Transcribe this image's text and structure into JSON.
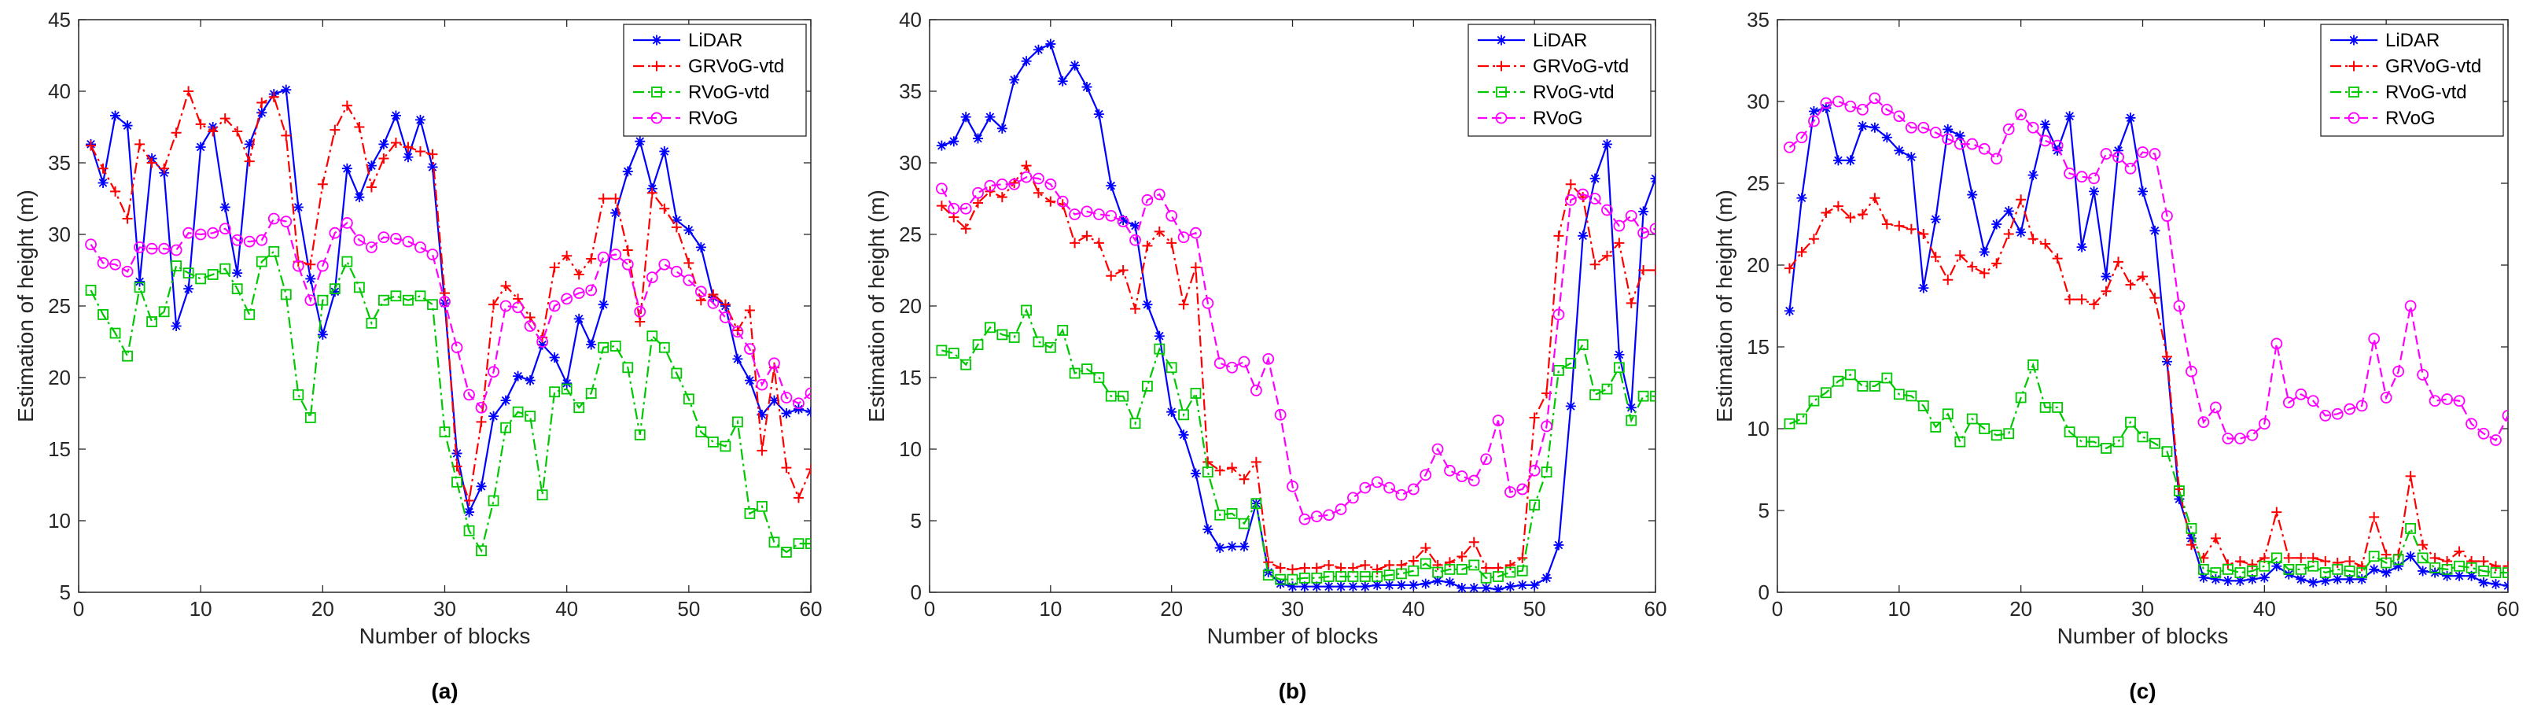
{
  "colors": {
    "lidar": "#0000FF",
    "grvog": "#FF0000",
    "rvogvtd": "#00C800",
    "rvog": "#FF00FF"
  },
  "chart_data": [
    {
      "type": "line",
      "panel_label": "(a)",
      "xlabel": "Number of blocks",
      "ylabel": "Estimation of height (m)",
      "xlim": [
        0,
        60
      ],
      "ylim": [
        5,
        45
      ],
      "xticks": [
        "0",
        "10",
        "20",
        "30",
        "40",
        "50",
        "60"
      ],
      "yticks": [
        "5",
        "10",
        "15",
        "20",
        "25",
        "30",
        "35",
        "40",
        "45"
      ],
      "legend_position": "top-right",
      "x": [
        1,
        2,
        3,
        4,
        5,
        6,
        7,
        8,
        9,
        10,
        11,
        12,
        13,
        14,
        15,
        16,
        17,
        18,
        19,
        20,
        21,
        22,
        23,
        24,
        25,
        26,
        27,
        28,
        29,
        30,
        31,
        32,
        33,
        34,
        35,
        36,
        37,
        38,
        39,
        40,
        41,
        42,
        43,
        44,
        45,
        46,
        47,
        48,
        49,
        50,
        51,
        52,
        53,
        54,
        55,
        56,
        57,
        58,
        59,
        60
      ],
      "series": [
        {
          "name": "LiDAR",
          "color_key": "lidar",
          "marker": "asterisk",
          "dash": "solid",
          "values": [
            36.3,
            33.6,
            38.3,
            37.6,
            26.7,
            35.3,
            34.3,
            23.6,
            26.2,
            36.1,
            37.5,
            31.9,
            27.3,
            36.3,
            38.5,
            39.8,
            40.1,
            31.9,
            26.9,
            23.0,
            26.0,
            34.6,
            32.6,
            34.8,
            36.3,
            38.3,
            35.4,
            38.0,
            34.7,
            25.2,
            14.7,
            10.6,
            12.4,
            17.3,
            18.4,
            20.1,
            19.8,
            22.3,
            21.4,
            19.6,
            24.1,
            22.3,
            25.1,
            31.5,
            34.4,
            36.5,
            33.2,
            35.8,
            31.0,
            30.3,
            29.1,
            25.6,
            25.0,
            21.3,
            19.8,
            17.4,
            18.4,
            17.5,
            17.8,
            17.6
          ]
        },
        {
          "name": "GRVoG-vtd",
          "color_key": "grvog",
          "marker": "plus",
          "dash": "dashdot",
          "values": [
            36.2,
            34.6,
            33.0,
            31.1,
            36.3,
            35.0,
            34.6,
            37.1,
            40.0,
            37.7,
            37.2,
            38.1,
            37.2,
            35.1,
            39.2,
            39.6,
            36.9,
            28.1,
            27.9,
            33.5,
            37.3,
            39.0,
            37.5,
            33.3,
            35.3,
            36.4,
            36.1,
            35.8,
            35.6,
            25.9,
            13.8,
            11.4,
            16.9,
            25.1,
            26.4,
            25.5,
            24.2,
            22.8,
            27.7,
            28.5,
            27.2,
            28.3,
            32.5,
            32.5,
            28.9,
            23.9,
            32.9,
            31.8,
            30.5,
            28.0,
            25.4,
            25.8,
            25.1,
            23.3,
            24.7,
            14.9,
            20.7,
            13.7,
            11.6,
            13.6
          ]
        },
        {
          "name": "RVoG-vtd",
          "color_key": "rvogvtd",
          "marker": "square",
          "dash": "dashdot",
          "values": [
            26.1,
            24.4,
            23.1,
            21.5,
            26.3,
            23.9,
            24.6,
            27.8,
            27.3,
            26.9,
            27.2,
            27.6,
            26.2,
            24.4,
            28.1,
            28.8,
            25.8,
            18.8,
            17.2,
            25.4,
            26.2,
            28.1,
            26.3,
            23.8,
            25.4,
            25.7,
            25.4,
            25.7,
            25.1,
            16.2,
            12.7,
            9.3,
            7.9,
            11.4,
            16.5,
            17.6,
            17.3,
            11.8,
            19.0,
            19.2,
            17.9,
            18.9,
            22.1,
            22.2,
            20.7,
            16.0,
            22.9,
            22.1,
            20.3,
            18.5,
            16.2,
            15.5,
            15.2,
            16.9,
            10.5,
            11.0,
            8.5,
            7.8,
            8.4,
            8.4
          ]
        },
        {
          "name": "RVoG",
          "color_key": "rvog",
          "marker": "circle",
          "dash": "dashed",
          "values": [
            29.3,
            28.0,
            27.9,
            27.4,
            29.1,
            29.0,
            29.0,
            28.9,
            30.1,
            30.0,
            30.1,
            30.4,
            29.6,
            29.5,
            29.6,
            31.1,
            30.9,
            27.8,
            25.4,
            27.8,
            30.1,
            30.8,
            29.6,
            29.1,
            29.8,
            29.7,
            29.5,
            29.1,
            28.6,
            25.3,
            22.1,
            18.8,
            17.9,
            20.4,
            25.0,
            24.9,
            23.6,
            22.5,
            25.0,
            25.5,
            25.9,
            26.1,
            28.4,
            28.6,
            27.9,
            24.6,
            27.0,
            27.9,
            27.4,
            26.8,
            26.0,
            25.2,
            24.2,
            23.2,
            22.0,
            19.5,
            21.0,
            18.6,
            18.2,
            18.9
          ]
        }
      ]
    },
    {
      "type": "line",
      "panel_label": "(b)",
      "xlabel": "Number of blocks",
      "ylabel": "Estimation of height (m)",
      "xlim": [
        0,
        60
      ],
      "ylim": [
        0,
        40
      ],
      "xticks": [
        "0",
        "10",
        "20",
        "30",
        "40",
        "50",
        "60"
      ],
      "yticks": [
        "0",
        "5",
        "10",
        "15",
        "20",
        "25",
        "30",
        "35",
        "40"
      ],
      "legend_position": "top-right",
      "x": [
        1,
        2,
        3,
        4,
        5,
        6,
        7,
        8,
        9,
        10,
        11,
        12,
        13,
        14,
        15,
        16,
        17,
        18,
        19,
        20,
        21,
        22,
        23,
        24,
        25,
        26,
        27,
        28,
        29,
        30,
        31,
        32,
        33,
        34,
        35,
        36,
        37,
        38,
        39,
        40,
        41,
        42,
        43,
        44,
        45,
        46,
        47,
        48,
        49,
        50,
        51,
        52,
        53,
        54,
        55,
        56,
        57,
        58,
        59,
        60
      ],
      "series": [
        {
          "name": "LiDAR",
          "color_key": "lidar",
          "marker": "asterisk",
          "dash": "solid",
          "values": [
            31.2,
            31.5,
            33.2,
            31.7,
            33.2,
            32.4,
            35.8,
            37.1,
            37.9,
            38.3,
            35.7,
            36.8,
            35.3,
            33.4,
            28.4,
            26.0,
            25.6,
            20.1,
            17.9,
            12.6,
            11.0,
            8.3,
            4.4,
            3.1,
            3.2,
            3.2,
            6.2,
            1.4,
            0.6,
            0.4,
            0.4,
            0.4,
            0.4,
            0.4,
            0.4,
            0.4,
            0.5,
            0.5,
            0.5,
            0.5,
            0.6,
            0.8,
            0.7,
            0.3,
            0.3,
            0.3,
            0.2,
            0.4,
            0.5,
            0.5,
            1.0,
            3.3,
            13.0,
            24.9,
            28.9,
            31.3,
            16.6,
            12.9,
            26.6,
            28.9
          ]
        },
        {
          "name": "GRVoG-vtd",
          "color_key": "grvog",
          "marker": "plus",
          "dash": "dashdot",
          "values": [
            27.0,
            26.2,
            25.4,
            27.2,
            28.0,
            27.6,
            28.6,
            29.8,
            27.9,
            27.3,
            27.1,
            24.4,
            24.9,
            24.4,
            22.1,
            22.5,
            19.8,
            24.2,
            25.2,
            24.4,
            20.1,
            22.7,
            9.1,
            8.5,
            8.7,
            7.9,
            9.1,
            2.1,
            1.7,
            1.6,
            1.7,
            1.7,
            1.9,
            1.7,
            1.7,
            1.9,
            1.6,
            1.9,
            1.9,
            2.2,
            3.1,
            1.9,
            2.1,
            2.5,
            3.5,
            1.7,
            1.7,
            1.9,
            2.4,
            12.2,
            13.9,
            24.9,
            28.5,
            27.6,
            22.9,
            23.5,
            24.4,
            20.2,
            22.5,
            22.5
          ]
        },
        {
          "name": "RVoG-vtd",
          "color_key": "rvogvtd",
          "marker": "square",
          "dash": "dashdot",
          "values": [
            16.9,
            16.7,
            15.9,
            17.3,
            18.5,
            18.0,
            17.8,
            19.7,
            17.5,
            17.1,
            18.3,
            15.3,
            15.6,
            15.0,
            13.7,
            13.7,
            11.8,
            14.4,
            17.0,
            15.7,
            12.4,
            13.9,
            8.4,
            5.4,
            5.5,
            4.8,
            6.2,
            1.2,
            0.9,
            0.9,
            1.0,
            1.0,
            1.1,
            1.1,
            1.1,
            1.1,
            1.1,
            1.2,
            1.3,
            1.5,
            2.0,
            1.4,
            1.6,
            1.6,
            1.9,
            1.0,
            1.1,
            1.4,
            1.5,
            6.1,
            8.4,
            15.5,
            16.0,
            17.3,
            13.8,
            14.2,
            15.7,
            12.0,
            13.7,
            13.7
          ]
        },
        {
          "name": "RVoG",
          "color_key": "rvog",
          "marker": "circle",
          "dash": "dashed",
          "values": [
            28.2,
            26.8,
            26.8,
            27.9,
            28.4,
            28.5,
            28.5,
            29.0,
            28.9,
            28.5,
            27.3,
            26.4,
            26.6,
            26.4,
            26.3,
            25.9,
            24.6,
            27.4,
            27.8,
            26.3,
            24.8,
            25.1,
            20.2,
            16.0,
            15.7,
            16.1,
            14.1,
            16.3,
            12.4,
            7.4,
            5.1,
            5.3,
            5.4,
            5.8,
            6.6,
            7.3,
            7.7,
            7.3,
            6.8,
            7.2,
            8.2,
            10.0,
            8.5,
            8.1,
            7.8,
            9.3,
            12.0,
            7.0,
            7.2,
            8.5,
            11.6,
            19.4,
            27.4,
            27.8,
            27.5,
            26.7,
            25.6,
            26.3,
            25.1,
            25.4
          ]
        }
      ]
    },
    {
      "type": "line",
      "panel_label": "(c)",
      "xlabel": "Number of blocks",
      "ylabel": "Estimation of height (m)",
      "xlim": [
        0,
        60
      ],
      "ylim": [
        0,
        35
      ],
      "xticks": [
        "0",
        "10",
        "20",
        "30",
        "40",
        "50",
        "60"
      ],
      "yticks": [
        "0",
        "5",
        "10",
        "15",
        "20",
        "25",
        "30",
        "35"
      ],
      "legend_position": "top-right",
      "x": [
        1,
        2,
        3,
        4,
        5,
        6,
        7,
        8,
        9,
        10,
        11,
        12,
        13,
        14,
        15,
        16,
        17,
        18,
        19,
        20,
        21,
        22,
        23,
        24,
        25,
        26,
        27,
        28,
        29,
        30,
        31,
        32,
        33,
        34,
        35,
        36,
        37,
        38,
        39,
        40,
        41,
        42,
        43,
        44,
        45,
        46,
        47,
        48,
        49,
        50,
        51,
        52,
        53,
        54,
        55,
        56,
        57,
        58,
        59,
        60
      ],
      "series": [
        {
          "name": "LiDAR",
          "color_key": "lidar",
          "marker": "asterisk",
          "dash": "solid",
          "values": [
            17.2,
            24.1,
            29.4,
            29.6,
            26.4,
            26.4,
            28.5,
            28.4,
            27.8,
            27.0,
            26.6,
            18.6,
            22.8,
            28.3,
            27.9,
            24.3,
            20.8,
            22.5,
            23.3,
            22.0,
            25.5,
            28.6,
            27.0,
            29.1,
            21.1,
            24.5,
            19.3,
            27.0,
            29.0,
            24.5,
            22.1,
            14.1,
            5.7,
            3.3,
            0.9,
            0.8,
            0.7,
            0.7,
            0.8,
            0.9,
            1.6,
            1.1,
            0.8,
            0.6,
            0.7,
            0.8,
            0.8,
            0.8,
            1.4,
            1.2,
            1.6,
            2.2,
            1.3,
            1.2,
            1.0,
            1.0,
            1.0,
            0.6,
            0.5,
            0.4
          ]
        },
        {
          "name": "GRVoG-vtd",
          "color_key": "grvog",
          "marker": "plus",
          "dash": "dashdot",
          "values": [
            19.8,
            20.8,
            21.6,
            23.2,
            23.6,
            22.9,
            23.1,
            24.1,
            22.5,
            22.4,
            22.2,
            21.9,
            20.5,
            19.1,
            20.6,
            19.9,
            19.5,
            20.1,
            21.9,
            24.0,
            21.6,
            21.3,
            20.4,
            17.9,
            17.9,
            17.6,
            18.4,
            20.2,
            18.8,
            19.3,
            18.0,
            14.4,
            6.3,
            2.9,
            2.1,
            3.3,
            1.7,
            1.9,
            1.7,
            2.1,
            4.9,
            2.1,
            2.1,
            2.1,
            1.9,
            1.8,
            1.9,
            1.6,
            4.6,
            2.3,
            2.3,
            7.1,
            2.9,
            2.1,
            1.9,
            2.5,
            1.9,
            1.9,
            1.6,
            1.6
          ]
        },
        {
          "name": "RVoG-vtd",
          "color_key": "rvogvtd",
          "marker": "square",
          "dash": "dashdot",
          "values": [
            10.3,
            10.6,
            11.7,
            12.2,
            12.9,
            13.3,
            12.6,
            12.6,
            13.1,
            12.1,
            12.0,
            11.4,
            10.1,
            10.9,
            9.2,
            10.6,
            10.0,
            9.6,
            9.7,
            11.9,
            13.9,
            11.3,
            11.3,
            9.8,
            9.2,
            9.2,
            8.8,
            9.2,
            10.4,
            9.5,
            9.1,
            8.6,
            6.2,
            3.9,
            1.4,
            1.2,
            1.4,
            1.2,
            1.3,
            1.6,
            2.1,
            1.4,
            1.4,
            1.6,
            1.2,
            1.4,
            1.3,
            1.2,
            2.2,
            1.8,
            2.0,
            3.9,
            2.1,
            1.5,
            1.4,
            1.6,
            1.5,
            1.3,
            1.2,
            1.2
          ]
        },
        {
          "name": "RVoG",
          "color_key": "rvog",
          "marker": "circle",
          "dash": "dashed",
          "values": [
            27.2,
            27.8,
            28.8,
            29.9,
            30.0,
            29.7,
            29.5,
            30.2,
            29.5,
            29.1,
            28.4,
            28.4,
            28.1,
            27.7,
            27.4,
            27.4,
            27.1,
            26.5,
            28.3,
            29.2,
            28.4,
            27.6,
            27.3,
            25.6,
            25.4,
            25.3,
            26.8,
            26.6,
            25.9,
            26.9,
            26.8,
            23.0,
            17.5,
            13.5,
            10.4,
            11.3,
            9.4,
            9.4,
            9.6,
            10.3,
            15.2,
            11.6,
            12.1,
            11.7,
            10.8,
            10.9,
            11.2,
            11.4,
            15.5,
            11.9,
            13.5,
            17.5,
            13.3,
            11.7,
            11.8,
            11.7,
            10.3,
            9.7,
            9.3,
            10.8
          ]
        }
      ]
    }
  ]
}
